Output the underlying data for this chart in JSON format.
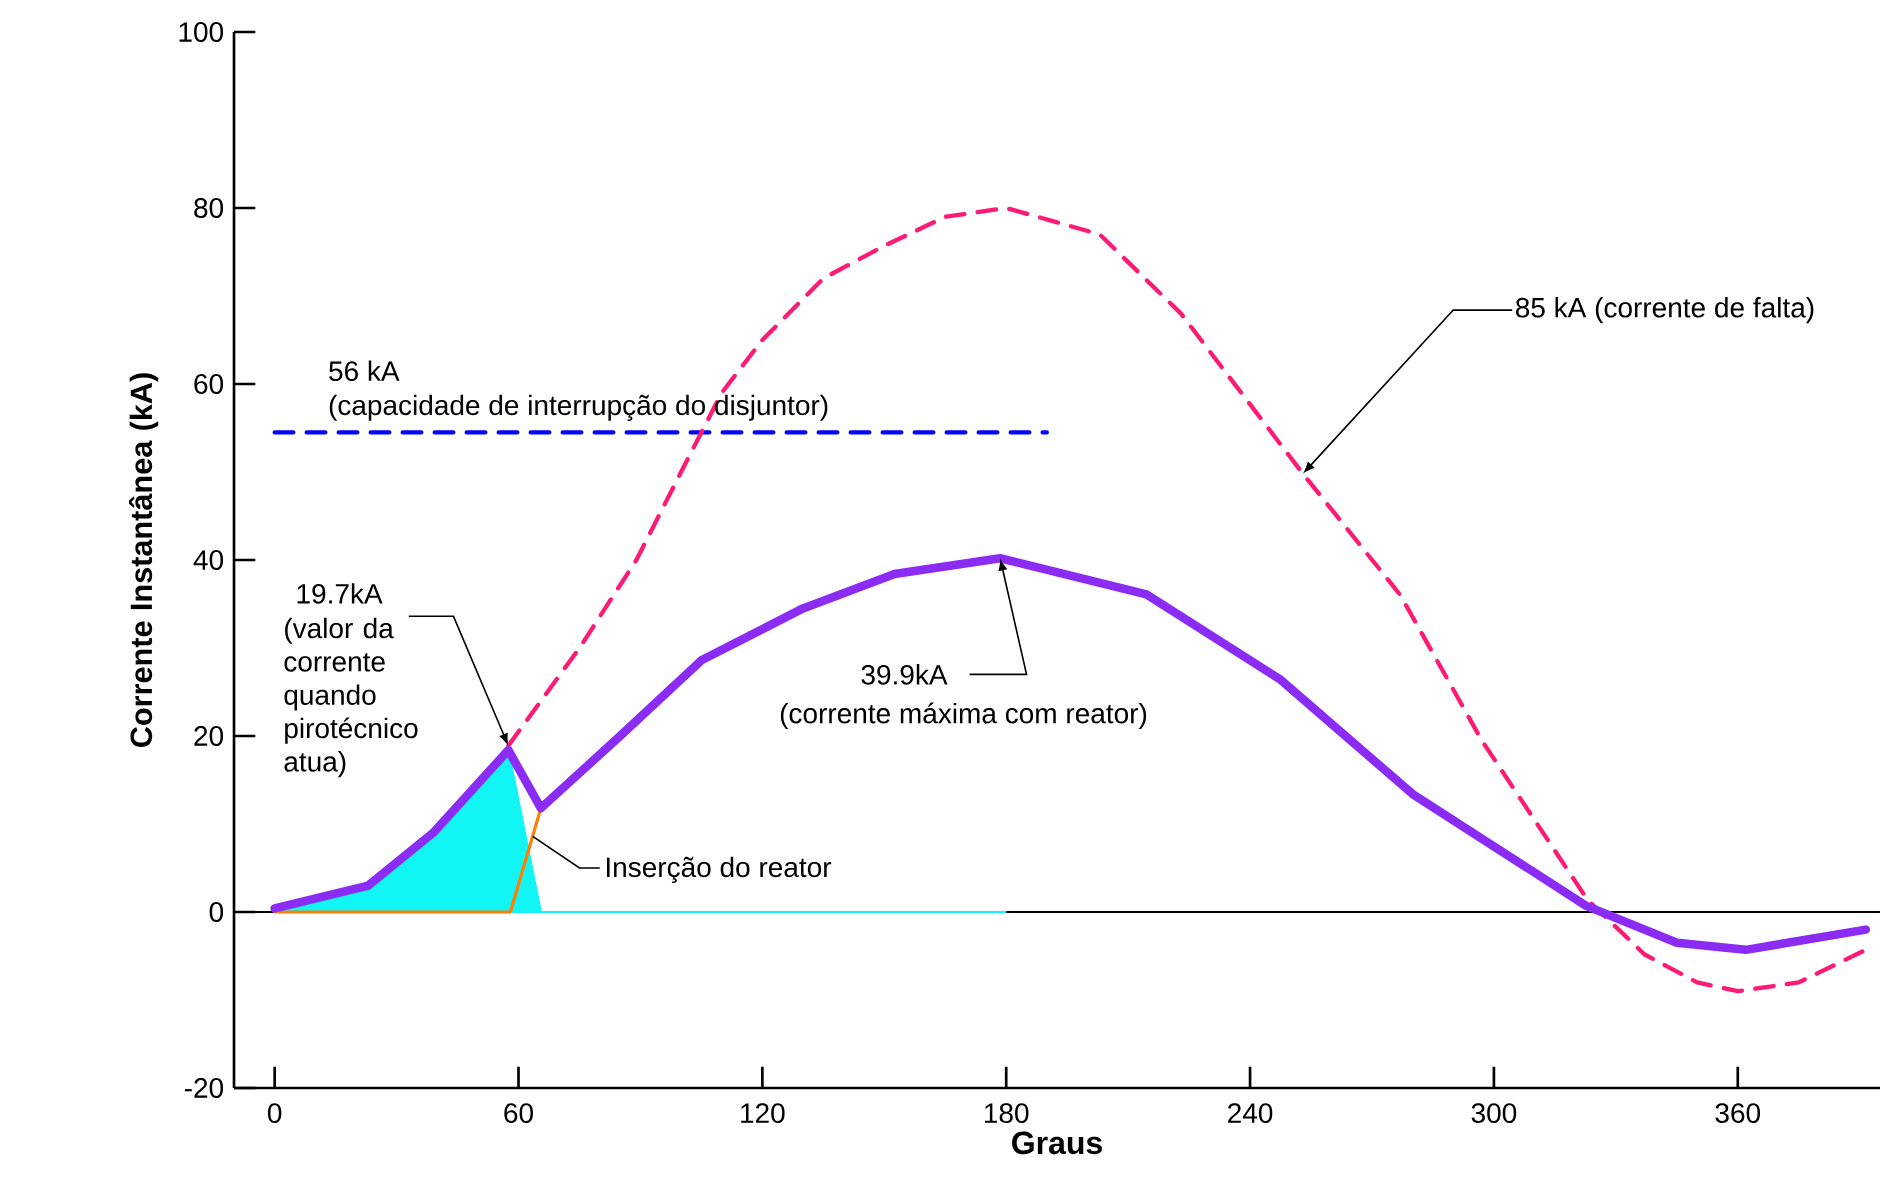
{
  "chart_data": {
    "type": "line",
    "xlabel": "Graus",
    "ylabel": "Corrente Instantânea (kA)",
    "xlim": [
      -10,
      395
    ],
    "ylim": [
      -20,
      100
    ],
    "xticks": [
      0,
      60,
      120,
      180,
      240,
      300,
      360
    ],
    "yticks": [
      -20,
      0,
      20,
      40,
      60,
      80,
      100
    ],
    "grid": false,
    "marker": "none",
    "series": [
      {
        "type": "area",
        "color": "#12f5f5",
        "x": [
          0,
          23,
          39,
          57.5,
          65.5,
          180
        ],
        "values": [
          0.4,
          3,
          9,
          18.4,
          0,
          0
        ]
      },
      {
        "color": "#ff8000",
        "line_style": "solid",
        "x": [
          0,
          58,
          65.5
        ],
        "values": [
          0,
          0,
          11.8
        ]
      },
      {
        "color": "#0000ff",
        "line_style": "dashed",
        "x": [
          0,
          190
        ],
        "values": [
          54.5,
          54.5
        ]
      },
      {
        "color": "#ff1a75",
        "line_style": "dashed",
        "x": [
          57.5,
          75,
          89,
          100,
          110,
          120,
          135,
          150,
          165,
          180,
          203,
          223,
          253,
          277,
          297,
          323,
          337,
          350,
          360,
          375,
          391.5
        ],
        "values": [
          18.9,
          30,
          40,
          50,
          59,
          65,
          72,
          75.7,
          79,
          80,
          77,
          68,
          49.8,
          36,
          19.5,
          1.4,
          -4.8,
          -8,
          -9,
          -8,
          -4.3
        ]
      },
      {
        "color": "#8b2cf5",
        "line_style": "solid",
        "x": [
          0,
          23,
          39,
          57.5,
          65.5,
          85,
          105,
          130,
          152.5,
          178.5,
          214.5,
          247.5,
          280,
          322.7,
          345,
          362,
          391.5
        ],
        "values": [
          0.4,
          3,
          9,
          18.4,
          11.8,
          20,
          28.6,
          34.5,
          38.4,
          40.2,
          36.1,
          26.4,
          13.4,
          0.7,
          -3.5,
          -4.3,
          -2
        ]
      }
    ],
    "ref_lines": [
      {
        "axis": "y",
        "value": 0,
        "color": "#000000"
      }
    ],
    "annotations": [
      "56 kA",
      "(capacidade de interrupção do disjuntor)",
      "19.7kA",
      {
        "text": "(valor da corrente quando pirotécnico atua)",
        "x": 57.5,
        "y": 18.9
      },
      {
        "text": "Inserção do reator",
        "x": 63.5,
        "y": 8.6
      },
      "39.9kA",
      {
        "text": "(corrente máxima com reator)",
        "x": 178.5,
        "y": 40.2
      },
      {
        "text": "85 kA  (corrente de falta)",
        "x": 253,
        "y": 49.8
      }
    ]
  }
}
